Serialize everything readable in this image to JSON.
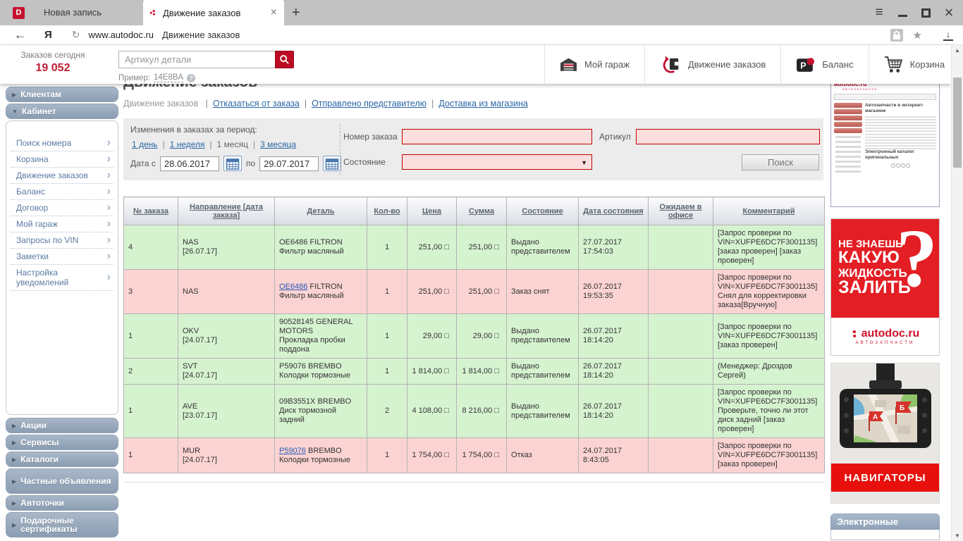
{
  "browser": {
    "tab1": {
      "icon": "D",
      "label": "Новая запись"
    },
    "tab2": {
      "label": "Движение заказов"
    },
    "url_host": "www.autodoc.ru",
    "url_title": "Движение заказов"
  },
  "header": {
    "orders_today_label": "Заказов сегодня",
    "orders_today_value": "19 052",
    "search_placeholder": "Артикул детали",
    "example_label": "Пример:",
    "example_code": "14E8BA",
    "nav": [
      {
        "label": "Мой гараж"
      },
      {
        "label": "Движение заказов"
      },
      {
        "label": "Баланс"
      },
      {
        "label": "Корзина"
      }
    ]
  },
  "sidebar": {
    "top": [
      {
        "label": "Клиентам"
      }
    ],
    "cabinet": {
      "label": "Кабинет",
      "items": [
        "Поиск номера",
        "Корзина",
        "Движение заказов",
        "Баланс",
        "Договор",
        "Мой гараж",
        "Запросы по VIN",
        "Заметки",
        "Настройка уведомлений"
      ]
    },
    "bottom": [
      "Акции",
      "Сервисы",
      "Каталоги",
      "Частные объявления",
      "Автоточки",
      "Подарочные сертификаты"
    ]
  },
  "main": {
    "title": "Движение заказов",
    "subnav": {
      "current": "Движение заказов",
      "links": [
        "Отказаться от заказа",
        "Отправлено представителю",
        "Доставка из магазина"
      ]
    },
    "filter": {
      "period_label": "Изменения в заказах за период:",
      "period_items": [
        {
          "label": "1 день",
          "link": true
        },
        {
          "label": "1 неделя",
          "link": true
        },
        {
          "label": "1 месяц",
          "link": false
        },
        {
          "label": "3 месяца",
          "link": true
        }
      ],
      "date_from_label": "Дата с",
      "date_from": "28.06.2017",
      "date_to_label": "по",
      "date_to": "29.07.2017",
      "order_number_label": "Номер заказа",
      "article_label": "Артикул",
      "state_label": "Состояние",
      "search_button": "Поиск"
    },
    "table": {
      "columns": [
        "№ заказа",
        "Направление [дата заказа]",
        "Деталь",
        "Кол-во",
        "Цена",
        "Сумма",
        "Состояние",
        "Дата состояния",
        "Ожидаем в офисе",
        "Комментарий"
      ],
      "rows": [
        {
          "color": "green",
          "no": "4",
          "dir": "NAS",
          "dir_date": "[26.07.17]",
          "code": "OE6486",
          "code_link": false,
          "brand": "FILTRON",
          "name": "Фильтр масляный",
          "qty": "1",
          "price": "251,00 □",
          "sum": "251,00 □",
          "state": "Выдано представителем",
          "sdate": "27.07.2017",
          "stime": "17:54:03",
          "office": "",
          "comment": "[Запрос проверки по VIN=XUFPE6DC7F3001135] [заказ проверен] [заказ проверен]"
        },
        {
          "color": "pink",
          "no": "3",
          "dir": "NAS",
          "dir_date": "",
          "code": "OE6486",
          "code_link": true,
          "brand": "FILTRON",
          "name": "Фильтр масляный",
          "qty": "1",
          "price": "251,00 □",
          "sum": "251,00 □",
          "state": "Заказ снят",
          "sdate": "26.07.2017",
          "stime": "19:53:35",
          "office": "",
          "comment": "[Запрос проверки по VIN=XUFPE6DC7F3001135] Снял для корректировки заказа[Вручную]"
        },
        {
          "color": "green",
          "no": "1",
          "dir": "OKV",
          "dir_date": "[24.07.17]",
          "code": "90528145",
          "code_link": false,
          "brand": "GENERAL MOTORS",
          "name": "Прокладка пробки поддона",
          "qty": "1",
          "price": "29,00 □",
          "sum": "29,00 □",
          "state": "Выдано представителем",
          "sdate": "26.07.2017",
          "stime": "18:14:20",
          "office": "",
          "comment": "[Запрос проверки по VIN=XUFPE6DC7F3001135] [заказ проверен]"
        },
        {
          "color": "green",
          "no": "2",
          "dir": "SVT",
          "dir_date": "[24.07.17]",
          "code": "P59076",
          "code_link": false,
          "brand": "BREMBO",
          "name": "Колодки тормозные",
          "qty": "1",
          "price": "1 814,00 □",
          "sum": "1 814,00 □",
          "state": "Выдано представителем",
          "sdate": "26.07.2017",
          "stime": "18:14:20",
          "office": "",
          "comment": "(Менеджер: Дроздов Сергей)"
        },
        {
          "color": "green",
          "no": "1",
          "dir": "AVE",
          "dir_date": "[23.07.17]",
          "code": "09B3551X",
          "code_link": false,
          "brand": "BREMBO",
          "name": "Диск тормозной задний",
          "qty": "2",
          "price": "4 108,00 □",
          "sum": "8 216,00 □",
          "state": "Выдано представителем",
          "sdate": "26.07.2017",
          "stime": "18:14:20",
          "office": "",
          "comment": "[Запрос проверки по VIN=XUFPE6DC7F3001135] Проверьте, точно ли этот диск задний [заказ проверен]"
        },
        {
          "color": "pink",
          "no": "1",
          "dir": "MUR",
          "dir_date": "[24.07.17]",
          "code": "P59076",
          "code_link": true,
          "brand": "BREMBO",
          "name": "Колодки тормозные",
          "qty": "1",
          "price": "1 754,00 □",
          "sum": "1 754,00 □",
          "state": "Отказ",
          "sdate": "24.07.2017",
          "stime": "8:43:05",
          "office": "",
          "comment": "[Запрос проверки по VIN=XUFPE6DC7F3001135] [заказ проверен]"
        }
      ]
    }
  },
  "ads": {
    "site_preview": {
      "logo": "autodoc.ru",
      "logo_sub": "АВТОЗАПЧАСТИ",
      "heading": "Автозапчасти в интернет-магазине",
      "footer_heading": "Электронный каталог оригинальных"
    },
    "fluid": {
      "lines": [
        "НЕ ЗНАЕШЬ",
        "КАКУЮ",
        "ЖИДКОСТЬ",
        "ЗАЛИТЬ"
      ],
      "question_mark": "?",
      "logo": "autodoc.ru",
      "logo_sub": "АВТОЗАПЧАСТИ"
    },
    "navigator": {
      "label": "НАВИГАТОРЫ",
      "flag_a": "А",
      "flag_b": "Б"
    },
    "payments": {
      "label": "Электронные платежи"
    }
  },
  "colors": {
    "accent_red": "#c41230",
    "ad_red": "#e31e24",
    "green_row": "#d6f3d0",
    "pink_row": "#fbd3d3",
    "link_blue": "#2a66a5",
    "sidebar_bar": "#8a9db2"
  }
}
